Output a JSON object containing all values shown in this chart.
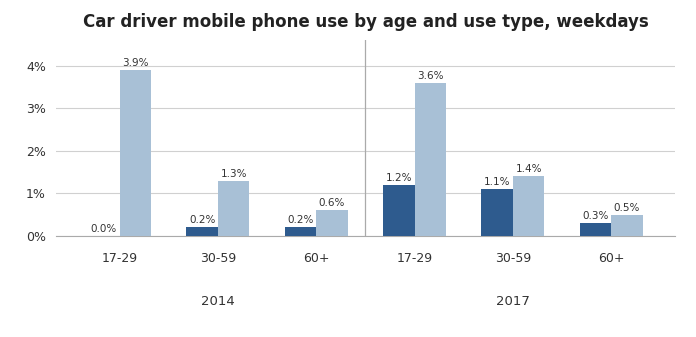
{
  "title": "Car driver mobile phone use by age and use type, weekdays",
  "groups": [
    "17-29",
    "30-59",
    "60+",
    "17-29",
    "30-59",
    "60+"
  ],
  "group_labels_year": [
    "2014",
    "2017"
  ],
  "at_ear": [
    0.0,
    0.2,
    0.2,
    1.2,
    1.1,
    0.3
  ],
  "in_hand": [
    3.9,
    1.3,
    0.6,
    3.6,
    1.4,
    0.5
  ],
  "at_ear_labels": [
    "0.0%",
    "0.2%",
    "0.2%",
    "1.2%",
    "1.1%",
    "0.3%"
  ],
  "in_hand_labels": [
    "3.9%",
    "1.3%",
    "0.6%",
    "3.6%",
    "1.4%",
    "0.5%"
  ],
  "color_at_ear": "#2E5B8E",
  "color_in_hand": "#A8C0D6",
  "ylim": [
    0,
    4.6
  ],
  "yticks": [
    0,
    1,
    2,
    3,
    4
  ],
  "yticklabels": [
    "0%",
    "1%",
    "2%",
    "3%",
    "4%"
  ],
  "bar_width": 0.32,
  "title_fontsize": 12,
  "label_fontsize": 7.5,
  "tick_fontsize": 9,
  "year_label_fontsize": 9.5
}
